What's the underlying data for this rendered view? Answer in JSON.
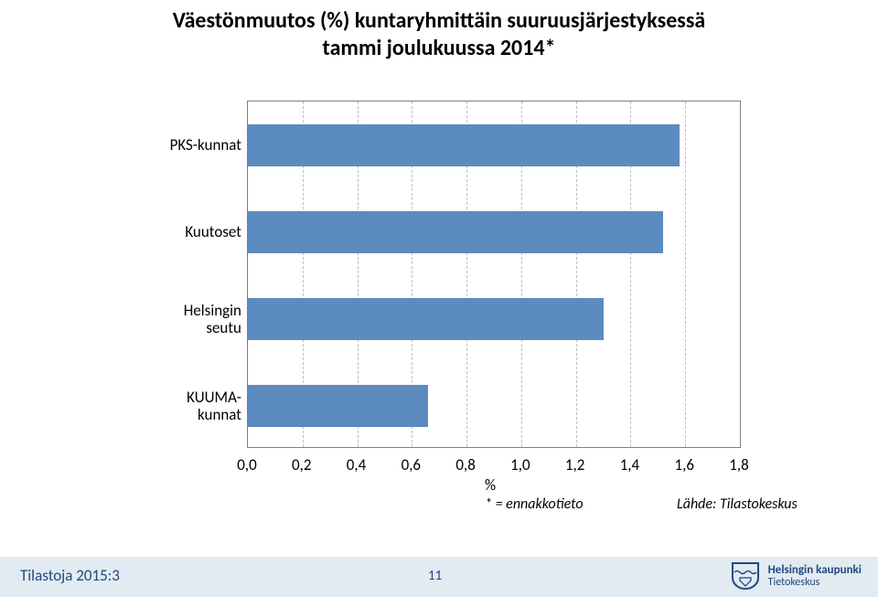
{
  "title_line1": "Väestönmuutos (%) kuntaryhmittäin suuruusjärjestyksessä",
  "title_line2": "tammi joulukuussa 2014*",
  "chart": {
    "xmin": 0.0,
    "xmax": 1.8,
    "xtick_step": 0.2,
    "xticks": [
      "0,0",
      "0,2",
      "0,4",
      "0,6",
      "0,8",
      "1,0",
      "1,2",
      "1,4",
      "1,6",
      "1,8"
    ],
    "xaxis_title": "%",
    "bar_color": "#5b8bbf",
    "grid_color": "#bfbfbf",
    "border_color": "#7f7f7f",
    "bars": [
      {
        "label": "PKS-kunnat",
        "value": 1.58
      },
      {
        "label": "Kuutoset",
        "value": 1.52
      },
      {
        "label": "Helsingin\nseutu",
        "value": 1.3
      },
      {
        "label": "KUUMA-\nkunnat",
        "value": 0.66
      }
    ]
  },
  "note_left": "* = ennakkotieto",
  "note_right": "Lähde: Tilastokeskus",
  "footer": {
    "docid": "Tilastoja 2015:3",
    "page": "11",
    "logo_main": "Helsingin kaupunki",
    "logo_sub": "Tietokeskus"
  }
}
